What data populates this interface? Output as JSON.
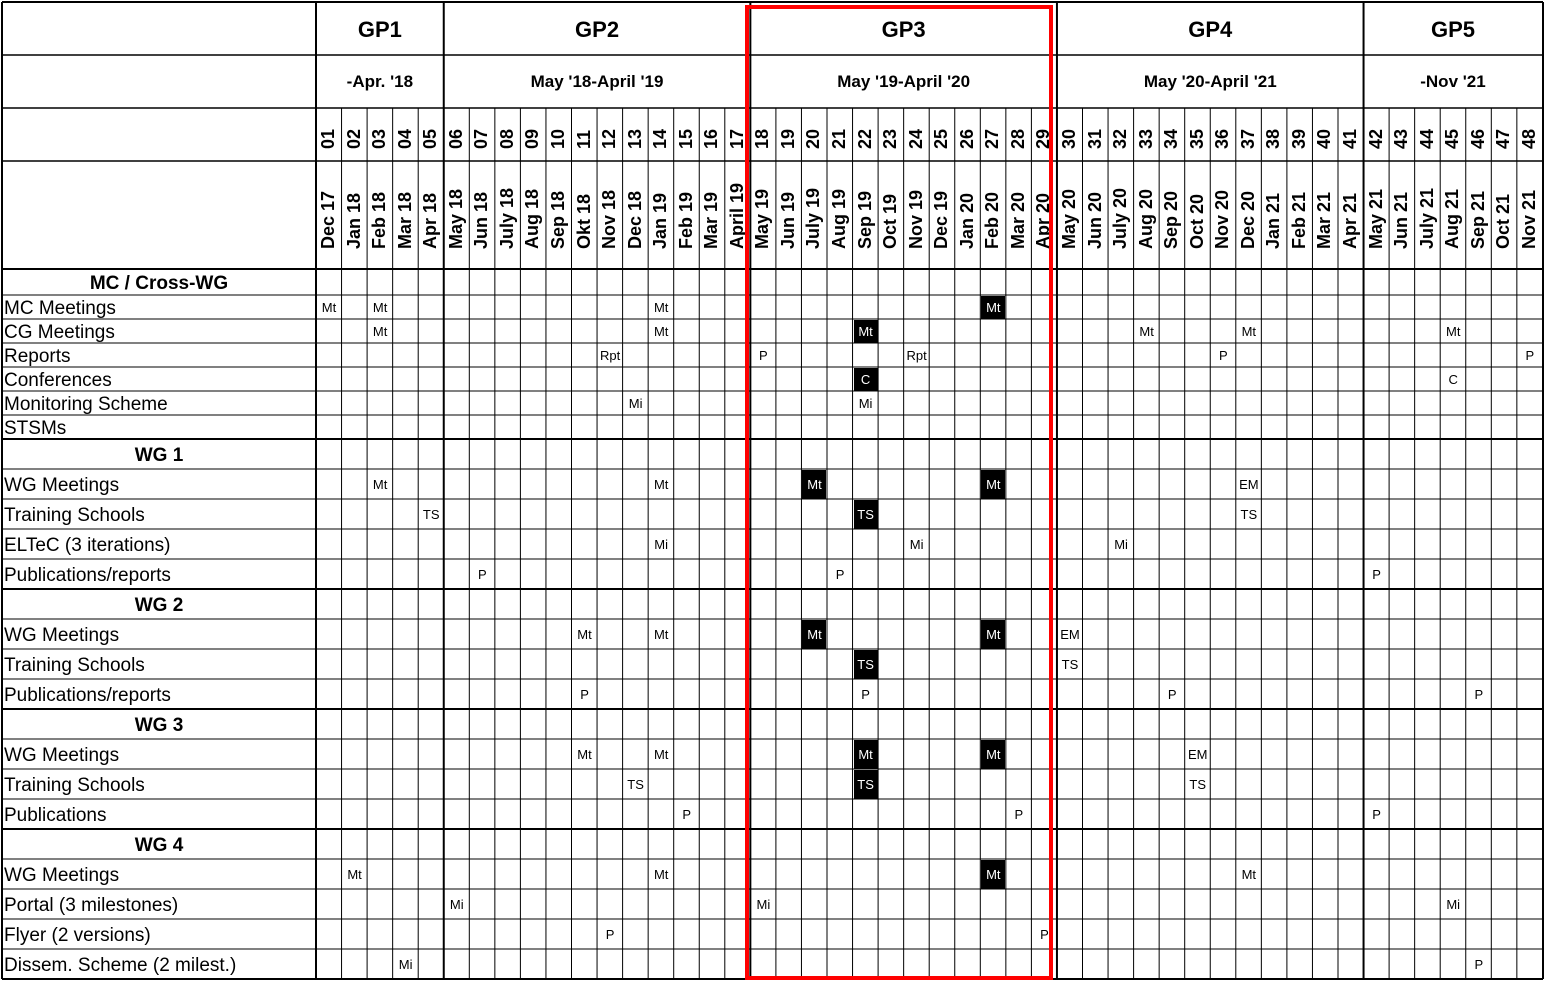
{
  "groups": [
    {
      "name": "GP1",
      "period": "-Apr. '18"
    },
    {
      "name": "GP2",
      "period": "May '18-April '19"
    },
    {
      "name": "GP3",
      "period": "May '19-April '20"
    },
    {
      "name": "GP4",
      "period": "May '20-April '21"
    },
    {
      "name": "GP5",
      "period": "-Nov '21"
    }
  ],
  "columns": [
    {
      "num": "01",
      "month": "Dec 17"
    },
    {
      "num": "02",
      "month": "Jan 18"
    },
    {
      "num": "03",
      "month": "Feb 18"
    },
    {
      "num": "04",
      "month": "Mar 18"
    },
    {
      "num": "05",
      "month": "Apr 18"
    },
    {
      "num": "06",
      "month": "May 18"
    },
    {
      "num": "07",
      "month": "Jun 18"
    },
    {
      "num": "08",
      "month": "July 18"
    },
    {
      "num": "09",
      "month": "Aug 18"
    },
    {
      "num": "10",
      "month": "Sep 18"
    },
    {
      "num": "11",
      "month": "Okt 18"
    },
    {
      "num": "12",
      "month": "Nov 18"
    },
    {
      "num": "13",
      "month": "Dec 18"
    },
    {
      "num": "14",
      "month": "Jan 19"
    },
    {
      "num": "15",
      "month": "Feb 19"
    },
    {
      "num": "16",
      "month": "Mar 19"
    },
    {
      "num": "17",
      "month": "April 19"
    },
    {
      "num": "18",
      "month": "May 19"
    },
    {
      "num": "19",
      "month": "Jun 19"
    },
    {
      "num": "20",
      "month": "July 19"
    },
    {
      "num": "21",
      "month": "Aug 19"
    },
    {
      "num": "22",
      "month": "Sep 19"
    },
    {
      "num": "23",
      "month": "Oct 19"
    },
    {
      "num": "24",
      "month": "Nov 19"
    },
    {
      "num": "25",
      "month": "Dec 19"
    },
    {
      "num": "26",
      "month": "Jan 20"
    },
    {
      "num": "27",
      "month": "Feb 20"
    },
    {
      "num": "28",
      "month": "Mar 20"
    },
    {
      "num": "29",
      "month": "Apr 20"
    },
    {
      "num": "30",
      "month": "May 20"
    },
    {
      "num": "31",
      "month": "Jun 20"
    },
    {
      "num": "32",
      "month": "July 20"
    },
    {
      "num": "33",
      "month": "Aug 20"
    },
    {
      "num": "34",
      "month": "Sep 20"
    },
    {
      "num": "35",
      "month": "Oct 20"
    },
    {
      "num": "36",
      "month": "Nov 20"
    },
    {
      "num": "37",
      "month": "Dec 20"
    },
    {
      "num": "38",
      "month": "Jan 21"
    },
    {
      "num": "39",
      "month": "Feb 21"
    },
    {
      "num": "40",
      "month": "Mar 21"
    },
    {
      "num": "41",
      "month": "Apr 21"
    },
    {
      "num": "42",
      "month": "May 21"
    },
    {
      "num": "43",
      "month": "Jun 21"
    },
    {
      "num": "44",
      "month": "July 21"
    },
    {
      "num": "45",
      "month": "Aug 21"
    },
    {
      "num": "46",
      "month": "Sep 21"
    },
    {
      "num": "47",
      "month": "Oct 21"
    },
    {
      "num": "48",
      "month": "Nov 21"
    }
  ],
  "sections": [
    {
      "title": "MC / Cross-WG",
      "rows": [
        {
          "label": "MC Meetings",
          "marks": [
            {
              "col": 1,
              "text": "Mt"
            },
            {
              "col": 3,
              "text": "Mt"
            },
            {
              "col": 14,
              "text": "Mt"
            },
            {
              "col": 27,
              "text": "Mt",
              "filled": true
            }
          ]
        },
        {
          "label": "CG Meetings",
          "marks": [
            {
              "col": 3,
              "text": "Mt"
            },
            {
              "col": 14,
              "text": "Mt"
            },
            {
              "col": 22,
              "text": "Mt",
              "filled": true
            },
            {
              "col": 33,
              "text": "Mt"
            },
            {
              "col": 37,
              "text": "Mt"
            },
            {
              "col": 45,
              "text": "Mt"
            }
          ]
        },
        {
          "label": "Reports",
          "marks": [
            {
              "col": 12,
              "text": "Rpt"
            },
            {
              "col": 18,
              "text": "P"
            },
            {
              "col": 24,
              "text": "Rpt"
            },
            {
              "col": 36,
              "text": "P"
            },
            {
              "col": 48,
              "text": "P"
            }
          ]
        },
        {
          "label": "Conferences",
          "marks": [
            {
              "col": 22,
              "text": "C",
              "filled": true
            },
            {
              "col": 45,
              "text": "C"
            }
          ]
        },
        {
          "label": "Monitoring Scheme",
          "marks": [
            {
              "col": 13,
              "text": "Mi"
            },
            {
              "col": 22,
              "text": "Mi"
            }
          ]
        },
        {
          "label": "STSMs",
          "marks": []
        }
      ]
    },
    {
      "title": "WG 1",
      "rows": [
        {
          "label": "WG Meetings",
          "marks": [
            {
              "col": 3,
              "text": "Mt"
            },
            {
              "col": 14,
              "text": "Mt"
            },
            {
              "col": 20,
              "text": "Mt",
              "filled": true
            },
            {
              "col": 27,
              "text": "Mt",
              "filled": true
            },
            {
              "col": 37,
              "text": "EM"
            }
          ]
        },
        {
          "label": "Training Schools",
          "marks": [
            {
              "col": 5,
              "text": "TS"
            },
            {
              "col": 22,
              "text": "TS",
              "filled": true
            },
            {
              "col": 37,
              "text": "TS"
            }
          ]
        },
        {
          "label": "ELTeC (3 iterations)",
          "marks": [
            {
              "col": 14,
              "text": "Mi"
            },
            {
              "col": 24,
              "text": "Mi"
            },
            {
              "col": 32,
              "text": "Mi"
            }
          ]
        },
        {
          "label": "Publications/reports",
          "marks": [
            {
              "col": 7,
              "text": "P"
            },
            {
              "col": 21,
              "text": "P"
            },
            {
              "col": 42,
              "text": "P"
            }
          ]
        }
      ]
    },
    {
      "title": "WG 2",
      "rows": [
        {
          "label": "WG Meetings",
          "marks": [
            {
              "col": 11,
              "text": "Mt"
            },
            {
              "col": 14,
              "text": "Mt"
            },
            {
              "col": 20,
              "text": "Mt",
              "filled": true
            },
            {
              "col": 27,
              "text": "Mt",
              "filled": true
            },
            {
              "col": 30,
              "text": "EM"
            }
          ]
        },
        {
          "label": "Training Schools",
          "marks": [
            {
              "col": 22,
              "text": "TS",
              "filled": true
            },
            {
              "col": 30,
              "text": "TS"
            }
          ]
        },
        {
          "label": "Publications/reports",
          "marks": [
            {
              "col": 11,
              "text": "P"
            },
            {
              "col": 22,
              "text": "P"
            },
            {
              "col": 34,
              "text": "P"
            },
            {
              "col": 46,
              "text": "P"
            }
          ]
        }
      ]
    },
    {
      "title": "WG 3",
      "rows": [
        {
          "label": "WG Meetings",
          "marks": [
            {
              "col": 11,
              "text": "Mt"
            },
            {
              "col": 14,
              "text": "Mt"
            },
            {
              "col": 22,
              "text": "Mt",
              "filled": true
            },
            {
              "col": 27,
              "text": "Mt",
              "filled": true
            },
            {
              "col": 35,
              "text": "EM"
            }
          ]
        },
        {
          "label": "Training Schools",
          "marks": [
            {
              "col": 13,
              "text": "TS"
            },
            {
              "col": 22,
              "text": "TS",
              "filled": true
            },
            {
              "col": 35,
              "text": "TS"
            }
          ]
        },
        {
          "label": "Publications",
          "marks": [
            {
              "col": 15,
              "text": "P"
            },
            {
              "col": 28,
              "text": "P"
            },
            {
              "col": 42,
              "text": "P"
            }
          ]
        }
      ]
    },
    {
      "title": "WG 4",
      "rows": [
        {
          "label": "WG Meetings",
          "marks": [
            {
              "col": 2,
              "text": "Mt"
            },
            {
              "col": 14,
              "text": "Mt"
            },
            {
              "col": 27,
              "text": "Mt",
              "filled": true
            },
            {
              "col": 37,
              "text": "Mt"
            }
          ]
        },
        {
          "label": "Portal (3 milestones)",
          "marks": [
            {
              "col": 6,
              "text": "Mi"
            },
            {
              "col": 18,
              "text": "Mi"
            },
            {
              "col": 45,
              "text": "Mi"
            }
          ]
        },
        {
          "label": "Flyer (2 versions)",
          "marks": [
            {
              "col": 12,
              "text": "P"
            },
            {
              "col": 29,
              "text": "P"
            }
          ]
        },
        {
          "label": "Dissem. Scheme (2 milest.)",
          "marks": [
            {
              "col": 4,
              "text": "Mi"
            },
            {
              "col": 46,
              "text": "P"
            }
          ]
        }
      ]
    }
  ],
  "highlight": {
    "group": "GP3",
    "color": "#ff0000"
  }
}
